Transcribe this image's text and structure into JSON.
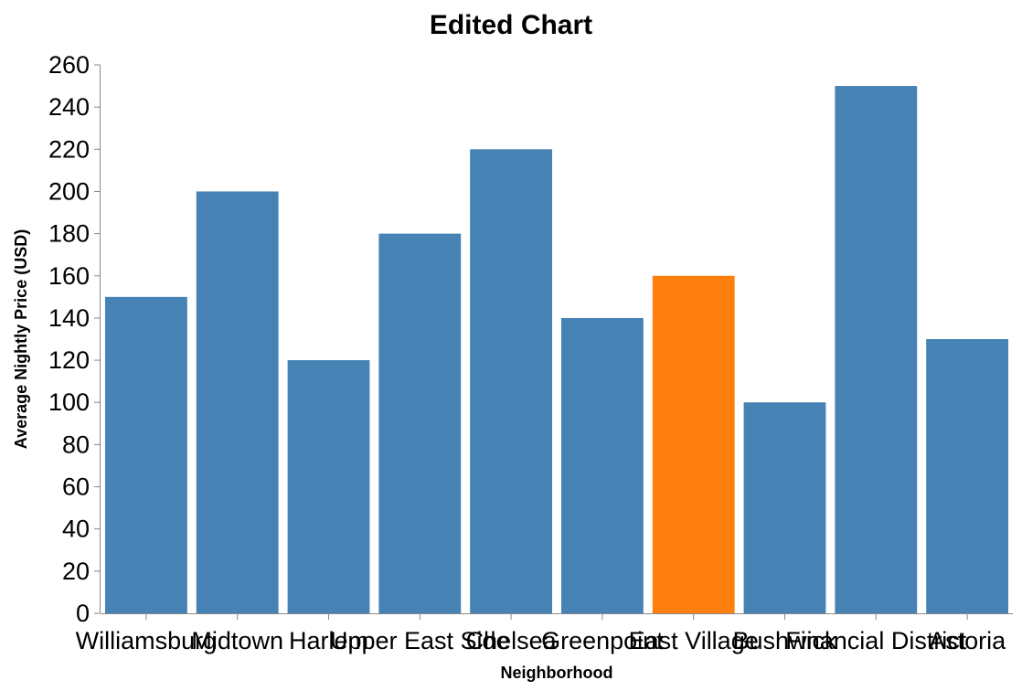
{
  "chart_data": {
    "type": "bar",
    "title": "Edited Chart",
    "xlabel": "Neighborhood",
    "ylabel": "Average Nightly Price (USD)",
    "categories": [
      "Williamsburg",
      "Midtown",
      "Harlem",
      "Upper East Side",
      "Chelsea",
      "Greenpoint",
      "East Village",
      "Bushwick",
      "Financial District",
      "Astoria"
    ],
    "values": [
      150,
      200,
      120,
      180,
      220,
      140,
      160,
      100,
      250,
      130
    ],
    "highlight_index": 6,
    "ylim": [
      0,
      260
    ],
    "yticks": [
      0,
      20,
      40,
      60,
      80,
      100,
      120,
      140,
      160,
      180,
      200,
      220,
      240,
      260
    ],
    "grid": false,
    "colors": {
      "bar": "#4682b4",
      "highlight": "#ff7f0e"
    }
  }
}
